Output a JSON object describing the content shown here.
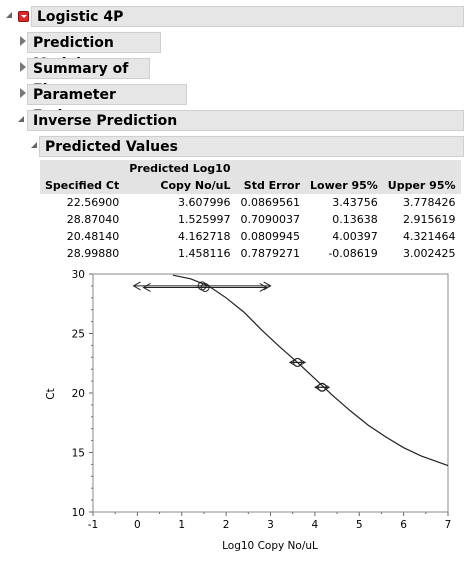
{
  "report": {
    "title": "Logistic 4P",
    "sections": [
      {
        "label": "Prediction Model"
      },
      {
        "label": "Summary of Fit"
      },
      {
        "label": "Parameter Estimates"
      }
    ],
    "inverse_prediction": {
      "label": "Inverse Prediction",
      "predicted_values": {
        "label": "Predicted Values",
        "columns": [
          "Specified Ct",
          "Predicted Log10 Copy No/uL",
          "Std Error",
          "Lower 95%",
          "Upper 95%"
        ],
        "header_row1": [
          "",
          "Predicted Log10",
          "",
          "",
          ""
        ],
        "header_row2": [
          "Specified Ct",
          "Copy No/uL",
          "Std Error",
          "Lower 95%",
          "Upper 95%"
        ],
        "rows": [
          [
            "22.56900",
            "3.607996",
            "0.0869561",
            "3.43756",
            "3.778426"
          ],
          [
            "28.87040",
            "1.525997",
            "0.7090037",
            "0.13638",
            "2.915619"
          ],
          [
            "20.48140",
            "4.162718",
            "0.0809945",
            "4.00397",
            "4.321464"
          ],
          [
            "28.99880",
            "1.458116",
            "0.7879271",
            "-0.08619",
            "3.002425"
          ]
        ]
      }
    }
  },
  "chart_data": {
    "type": "line",
    "xlabel": "Log10 Copy No/uL",
    "ylabel": "Ct",
    "xlim": [
      -1,
      7
    ],
    "ylim": [
      10,
      30
    ],
    "xticks": [
      "-1",
      "0",
      "1",
      "2",
      "3",
      "4",
      "5",
      "6",
      "7"
    ],
    "yticks": [
      "10",
      "15",
      "20",
      "25",
      "30"
    ],
    "curve": {
      "x": [
        0.8,
        1.2,
        1.6,
        2.0,
        2.4,
        2.8,
        3.2,
        3.6,
        4.0,
        4.4,
        4.8,
        5.2,
        5.6,
        6.0,
        6.4,
        7.0
      ],
      "y": [
        29.9,
        29.6,
        29.0,
        28.0,
        26.8,
        25.3,
        23.9,
        22.6,
        21.2,
        19.8,
        18.5,
        17.3,
        16.3,
        15.4,
        14.7,
        13.9
      ]
    },
    "predictions": [
      {
        "ct": 22.569,
        "x": 3.607996,
        "lower": 3.43756,
        "upper": 3.778426
      },
      {
        "ct": 28.8704,
        "x": 1.525997,
        "lower": 0.13638,
        "upper": 2.915619
      },
      {
        "ct": 20.4814,
        "x": 4.162718,
        "lower": 4.00397,
        "upper": 4.321464
      },
      {
        "ct": 28.9988,
        "x": 1.458116,
        "lower": -0.08619,
        "upper": 3.002425
      }
    ]
  }
}
